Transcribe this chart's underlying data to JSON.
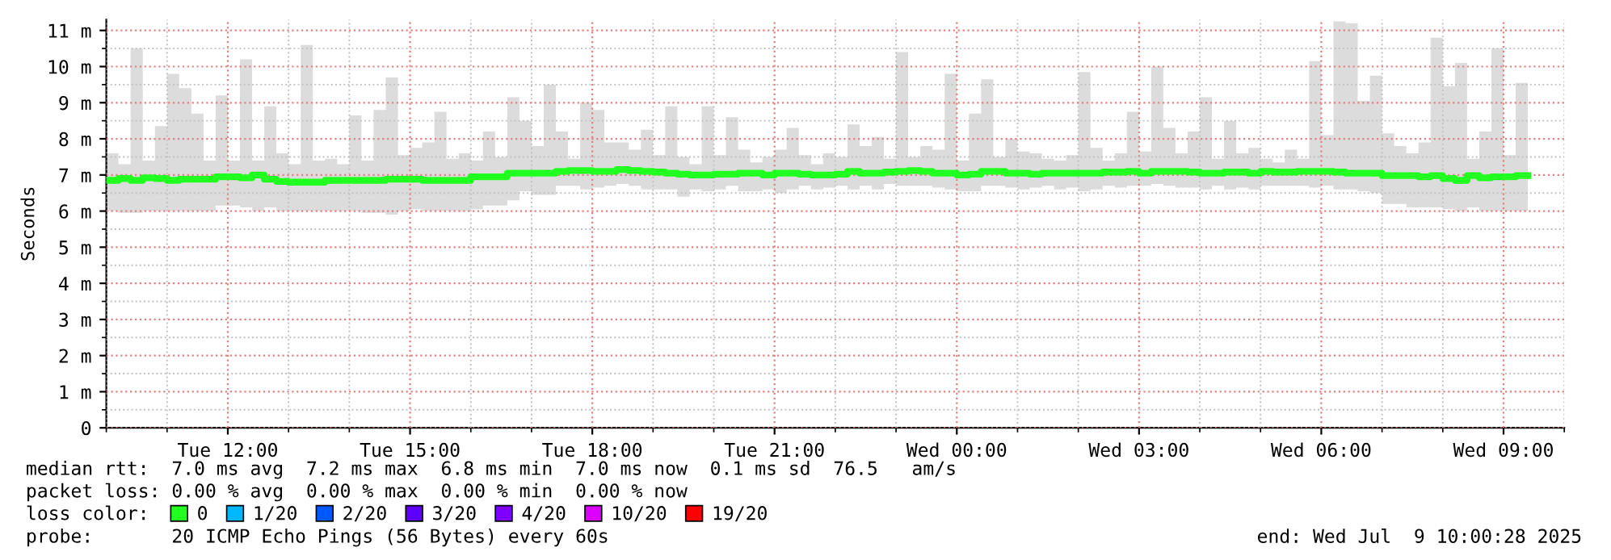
{
  "chart_data": {
    "type": "step",
    "ylabel": "Seconds",
    "xlim": [
      "2025-07-08T10:00",
      "2025-07-09T10:00"
    ],
    "xticks": [
      {
        "value": "2025-07-08T12:00",
        "label": "Tue 12:00"
      },
      {
        "value": "2025-07-08T15:00",
        "label": "Tue 15:00"
      },
      {
        "value": "2025-07-08T18:00",
        "label": "Tue 18:00"
      },
      {
        "value": "2025-07-08T21:00",
        "label": "Tue 21:00"
      },
      {
        "value": "2025-07-09T00:00",
        "label": "Wed 00:00"
      },
      {
        "value": "2025-07-09T03:00",
        "label": "Wed 03:00"
      },
      {
        "value": "2025-07-09T06:00",
        "label": "Wed 06:00"
      },
      {
        "value": "2025-07-09T09:00",
        "label": "Wed 09:00"
      }
    ],
    "ylim": [
      0,
      11.3
    ],
    "yticks": [
      {
        "value": 0,
        "label": "0"
      },
      {
        "value": 1,
        "label": "1 m"
      },
      {
        "value": 2,
        "label": "2 m"
      },
      {
        "value": 3,
        "label": "3 m"
      },
      {
        "value": 4,
        "label": "4 m"
      },
      {
        "value": 5,
        "label": "5 m"
      },
      {
        "value": 6,
        "label": "6 m"
      },
      {
        "value": 7,
        "label": "7 m"
      },
      {
        "value": 8,
        "label": "8 m"
      },
      {
        "value": 9,
        "label": "9 m"
      },
      {
        "value": 10,
        "label": "10 m"
      },
      {
        "value": 11,
        "label": "11 m"
      }
    ],
    "grid": true,
    "legend": "bottom left",
    "legend_title": "loss color:",
    "x": [
      "2025-07-08T10:00",
      "2025-07-08T10:12",
      "2025-07-08T10:24",
      "2025-07-08T10:36",
      "2025-07-08T10:48",
      "2025-07-08T11:00",
      "2025-07-08T11:12",
      "2025-07-08T11:24",
      "2025-07-08T11:36",
      "2025-07-08T11:48",
      "2025-07-08T12:00",
      "2025-07-08T12:12",
      "2025-07-08T12:24",
      "2025-07-08T12:36",
      "2025-07-08T12:48",
      "2025-07-08T13:00",
      "2025-07-08T13:12",
      "2025-07-08T13:24",
      "2025-07-08T13:36",
      "2025-07-08T13:48",
      "2025-07-08T14:00",
      "2025-07-08T14:12",
      "2025-07-08T14:24",
      "2025-07-08T14:36",
      "2025-07-08T14:48",
      "2025-07-08T15:00",
      "2025-07-08T15:12",
      "2025-07-08T15:24",
      "2025-07-08T15:36",
      "2025-07-08T15:48",
      "2025-07-08T16:00",
      "2025-07-08T16:12",
      "2025-07-08T16:24",
      "2025-07-08T16:36",
      "2025-07-08T16:48",
      "2025-07-08T17:00",
      "2025-07-08T17:12",
      "2025-07-08T17:24",
      "2025-07-08T17:36",
      "2025-07-08T17:48",
      "2025-07-08T18:00",
      "2025-07-08T18:12",
      "2025-07-08T18:24",
      "2025-07-08T18:36",
      "2025-07-08T18:48",
      "2025-07-08T19:00",
      "2025-07-08T19:12",
      "2025-07-08T19:24",
      "2025-07-08T19:36",
      "2025-07-08T19:48",
      "2025-07-08T20:00",
      "2025-07-08T20:12",
      "2025-07-08T20:24",
      "2025-07-08T20:36",
      "2025-07-08T20:48",
      "2025-07-08T21:00",
      "2025-07-08T21:12",
      "2025-07-08T21:24",
      "2025-07-08T21:36",
      "2025-07-08T21:48",
      "2025-07-08T22:00",
      "2025-07-08T22:12",
      "2025-07-08T22:24",
      "2025-07-08T22:36",
      "2025-07-08T22:48",
      "2025-07-08T23:00",
      "2025-07-08T23:12",
      "2025-07-08T23:24",
      "2025-07-08T23:36",
      "2025-07-08T23:48",
      "2025-07-09T00:00",
      "2025-07-09T00:12",
      "2025-07-09T00:24",
      "2025-07-09T00:36",
      "2025-07-09T00:48",
      "2025-07-09T01:00",
      "2025-07-09T01:12",
      "2025-07-09T01:24",
      "2025-07-09T01:36",
      "2025-07-09T01:48",
      "2025-07-09T02:00",
      "2025-07-09T02:12",
      "2025-07-09T02:24",
      "2025-07-09T02:36",
      "2025-07-09T02:48",
      "2025-07-09T03:00",
      "2025-07-09T03:12",
      "2025-07-09T03:24",
      "2025-07-09T03:36",
      "2025-07-09T03:48",
      "2025-07-09T04:00",
      "2025-07-09T04:12",
      "2025-07-09T04:24",
      "2025-07-09T04:36",
      "2025-07-09T04:48",
      "2025-07-09T05:00",
      "2025-07-09T05:12",
      "2025-07-09T05:24",
      "2025-07-09T05:36",
      "2025-07-09T05:48",
      "2025-07-09T06:00",
      "2025-07-09T06:12",
      "2025-07-09T06:24",
      "2025-07-09T06:36",
      "2025-07-09T06:48",
      "2025-07-09T07:00",
      "2025-07-09T07:12",
      "2025-07-09T07:24",
      "2025-07-09T07:36",
      "2025-07-09T07:48",
      "2025-07-09T08:00",
      "2025-07-09T08:12",
      "2025-07-09T08:24",
      "2025-07-09T08:36",
      "2025-07-09T08:48",
      "2025-07-09T09:00",
      "2025-07-09T09:12",
      "2025-07-09T09:24"
    ],
    "series": [
      {
        "name": "0",
        "color": "#20ff20",
        "values": [
          6.85,
          6.9,
          6.85,
          6.92,
          6.9,
          6.85,
          6.88,
          6.88,
          6.88,
          6.95,
          6.95,
          6.92,
          7.0,
          6.88,
          6.82,
          6.8,
          6.8,
          6.8,
          6.85,
          6.85,
          6.85,
          6.85,
          6.85,
          6.88,
          6.88,
          6.88,
          6.85,
          6.85,
          6.85,
          6.85,
          6.95,
          6.95,
          6.95,
          7.05,
          7.05,
          7.05,
          7.05,
          7.1,
          7.12,
          7.12,
          7.1,
          7.1,
          7.15,
          7.12,
          7.1,
          7.08,
          7.05,
          7.02,
          7.0,
          7.0,
          7.02,
          7.02,
          7.05,
          7.05,
          7.0,
          7.05,
          7.05,
          7.02,
          7.0,
          7.0,
          7.02,
          7.1,
          7.05,
          7.05,
          7.08,
          7.1,
          7.12,
          7.1,
          7.05,
          7.05,
          7.0,
          7.02,
          7.1,
          7.1,
          7.05,
          7.05,
          7.02,
          7.05,
          7.05,
          7.05,
          7.05,
          7.05,
          7.08,
          7.08,
          7.1,
          7.05,
          7.1,
          7.1,
          7.1,
          7.08,
          7.05,
          7.05,
          7.08,
          7.08,
          7.05,
          7.1,
          7.08,
          7.08,
          7.1,
          7.1,
          7.1,
          7.08,
          7.05,
          7.05,
          7.05,
          6.98,
          6.98,
          6.98,
          6.95,
          6.98,
          6.9,
          6.85,
          6.98,
          6.92,
          6.95,
          6.95,
          6.98,
          6.98
        ],
        "lower": [
          6.0,
          5.95,
          5.95,
          6.0,
          6.0,
          6.0,
          6.0,
          6.0,
          6.0,
          6.15,
          6.15,
          6.1,
          6.0,
          6.1,
          6.0,
          6.0,
          6.0,
          6.0,
          6.0,
          6.0,
          6.0,
          5.95,
          5.95,
          5.9,
          6.0,
          6.05,
          6.0,
          6.0,
          6.0,
          6.0,
          6.05,
          6.15,
          6.15,
          6.3,
          6.55,
          6.45,
          6.45,
          6.7,
          6.7,
          6.6,
          6.65,
          6.7,
          6.75,
          6.7,
          6.6,
          6.6,
          6.6,
          6.4,
          6.6,
          6.55,
          6.6,
          6.7,
          6.55,
          6.55,
          6.6,
          6.5,
          6.6,
          6.7,
          6.6,
          6.65,
          6.7,
          6.6,
          6.7,
          6.6,
          6.75,
          6.7,
          6.7,
          6.7,
          6.65,
          6.6,
          6.55,
          6.55,
          6.7,
          6.7,
          6.65,
          6.6,
          6.65,
          6.7,
          6.6,
          6.65,
          6.55,
          6.6,
          6.7,
          6.65,
          6.7,
          6.7,
          6.75,
          6.7,
          6.65,
          6.65,
          6.6,
          6.7,
          6.6,
          6.65,
          6.6,
          6.7,
          6.7,
          6.7,
          6.7,
          6.65,
          6.7,
          6.6,
          6.6,
          6.55,
          6.5,
          6.2,
          6.2,
          6.1,
          6.1,
          6.1,
          6.05,
          6.0,
          6.1,
          6.0,
          6.0,
          6.0,
          6.0,
          6.0
        ],
        "upper": [
          7.6,
          7.3,
          10.5,
          7.4,
          8.35,
          9.8,
          9.4,
          8.7,
          7.4,
          9.2,
          7.4,
          10.2,
          7.4,
          8.9,
          7.6,
          7.3,
          10.6,
          7.4,
          7.45,
          7.3,
          8.65,
          7.4,
          8.8,
          9.7,
          7.55,
          7.75,
          7.9,
          8.75,
          7.45,
          7.6,
          7.4,
          8.2,
          7.5,
          9.15,
          8.5,
          7.8,
          9.5,
          8.2,
          7.45,
          9.0,
          8.8,
          7.9,
          7.9,
          7.7,
          8.25,
          7.55,
          8.9,
          7.5,
          7.3,
          8.9,
          7.55,
          8.6,
          7.7,
          7.35,
          7.5,
          7.7,
          8.3,
          7.55,
          7.3,
          7.6,
          7.5,
          8.4,
          7.8,
          8.05,
          7.45,
          10.4,
          7.5,
          7.8,
          7.7,
          9.8,
          7.4,
          8.7,
          9.65,
          7.5,
          8.0,
          7.65,
          7.6,
          7.45,
          7.4,
          7.55,
          9.85,
          7.75,
          7.4,
          7.6,
          8.75,
          7.65,
          10.0,
          8.3,
          7.6,
          8.2,
          9.15,
          7.45,
          8.5,
          7.6,
          7.75,
          7.45,
          7.35,
          7.7,
          7.45,
          10.15,
          8.1,
          11.25,
          11.2,
          9.05,
          9.75,
          8.15,
          7.8,
          7.6,
          7.9,
          10.8,
          9.45,
          10.1,
          7.45,
          8.2,
          10.5,
          7.55,
          9.55,
          10.0
        ]
      },
      {
        "name": "1/20",
        "color": "#00b8ff",
        "values": [
          null,
          null,
          null,
          null,
          null,
          null,
          null,
          null,
          null,
          null,
          null,
          null,
          null,
          null,
          null,
          null,
          null,
          null,
          null,
          null,
          null,
          null,
          null,
          null,
          null,
          null,
          null,
          null,
          null,
          null,
          null,
          null,
          null,
          null,
          null,
          null,
          null,
          null,
          null,
          null,
          null,
          null,
          null,
          null,
          null,
          null,
          null,
          null,
          null,
          null,
          null,
          null,
          null,
          null,
          null,
          null,
          null,
          null,
          null,
          null,
          null,
          null,
          null,
          null,
          null,
          null,
          null,
          null,
          null,
          null,
          null,
          null,
          null,
          null,
          null,
          null,
          null,
          null,
          null,
          null,
          null,
          null,
          null,
          null,
          null,
          null,
          null,
          null,
          null,
          null,
          null,
          null,
          null,
          null,
          null,
          null,
          null,
          null,
          null,
          null,
          null,
          null,
          null,
          null,
          null,
          null,
          null,
          null,
          null,
          null,
          null,
          null,
          null,
          null,
          null,
          null,
          null,
          null
        ]
      },
      {
        "name": "2/20",
        "color": "#0059ff",
        "values": [
          null,
          null,
          null,
          null,
          null,
          null,
          null,
          null,
          null,
          null,
          null,
          null,
          null,
          null,
          null,
          null,
          null,
          null,
          null,
          null,
          null,
          null,
          null,
          null,
          null,
          null,
          null,
          null,
          null,
          null,
          null,
          null,
          null,
          null,
          null,
          null,
          null,
          null,
          null,
          null,
          null,
          null,
          null,
          null,
          null,
          null,
          null,
          null,
          null,
          null,
          null,
          null,
          null,
          null,
          null,
          null,
          null,
          null,
          null,
          null,
          null,
          null,
          null,
          null,
          null,
          null,
          null,
          null,
          null,
          null,
          null,
          null,
          null,
          null,
          null,
          null,
          null,
          null,
          null,
          null,
          null,
          null,
          null,
          null,
          null,
          null,
          null,
          null,
          null,
          null,
          null,
          null,
          null,
          null,
          null,
          null,
          null,
          null,
          null,
          null,
          null,
          null,
          null,
          null,
          null,
          null,
          null,
          null,
          null,
          null,
          null,
          null,
          null,
          null,
          null,
          null,
          null,
          null
        ]
      },
      {
        "name": "3/20",
        "color": "#5e00ff",
        "values": [
          null,
          null,
          null,
          null,
          null,
          null,
          null,
          null,
          null,
          null,
          null,
          null,
          null,
          null,
          null,
          null,
          null,
          null,
          null,
          null,
          null,
          null,
          null,
          null,
          null,
          null,
          null,
          null,
          null,
          null,
          null,
          null,
          null,
          null,
          null,
          null,
          null,
          null,
          null,
          null,
          null,
          null,
          null,
          null,
          null,
          null,
          null,
          null,
          null,
          null,
          null,
          null,
          null,
          null,
          null,
          null,
          null,
          null,
          null,
          null,
          null,
          null,
          null,
          null,
          null,
          null,
          null,
          null,
          null,
          null,
          null,
          null,
          null,
          null,
          null,
          null,
          null,
          null,
          null,
          null,
          null,
          null,
          null,
          null,
          null,
          null,
          null,
          null,
          null,
          null,
          null,
          null,
          null,
          null,
          null,
          null,
          null,
          null,
          null,
          null,
          null,
          null,
          null,
          null,
          null,
          null,
          null,
          null,
          null,
          null,
          null,
          null,
          null,
          null,
          null,
          null,
          null,
          null
        ]
      },
      {
        "name": "4/20",
        "color": "#7e00ff",
        "values": [
          null,
          null,
          null,
          null,
          null,
          null,
          null,
          null,
          null,
          null,
          null,
          null,
          null,
          null,
          null,
          null,
          null,
          null,
          null,
          null,
          null,
          null,
          null,
          null,
          null,
          null,
          null,
          null,
          null,
          null,
          null,
          null,
          null,
          null,
          null,
          null,
          null,
          null,
          null,
          null,
          null,
          null,
          null,
          null,
          null,
          null,
          null,
          null,
          null,
          null,
          null,
          null,
          null,
          null,
          null,
          null,
          null,
          null,
          null,
          null,
          null,
          null,
          null,
          null,
          null,
          null,
          null,
          null,
          null,
          null,
          null,
          null,
          null,
          null,
          null,
          null,
          null,
          null,
          null,
          null,
          null,
          null,
          null,
          null,
          null,
          null,
          null,
          null,
          null,
          null,
          null,
          null,
          null,
          null,
          null,
          null,
          null,
          null,
          null,
          null,
          null,
          null,
          null,
          null,
          null,
          null,
          null,
          null,
          null,
          null,
          null,
          null,
          null,
          null,
          null,
          null,
          null,
          null
        ]
      },
      {
        "name": "10/20",
        "color": "#dd00ff",
        "values": [
          null,
          null,
          null,
          null,
          null,
          null,
          null,
          null,
          null,
          null,
          null,
          null,
          null,
          null,
          null,
          null,
          null,
          null,
          null,
          null,
          null,
          null,
          null,
          null,
          null,
          null,
          null,
          null,
          null,
          null,
          null,
          null,
          null,
          null,
          null,
          null,
          null,
          null,
          null,
          null,
          null,
          null,
          null,
          null,
          null,
          null,
          null,
          null,
          null,
          null,
          null,
          null,
          null,
          null,
          null,
          null,
          null,
          null,
          null,
          null,
          null,
          null,
          null,
          null,
          null,
          null,
          null,
          null,
          null,
          null,
          null,
          null,
          null,
          null,
          null,
          null,
          null,
          null,
          null,
          null,
          null,
          null,
          null,
          null,
          null,
          null,
          null,
          null,
          null,
          null,
          null,
          null,
          null,
          null,
          null,
          null,
          null,
          null,
          null,
          null,
          null,
          null,
          null,
          null,
          null,
          null,
          null,
          null,
          null,
          null,
          null,
          null,
          null,
          null,
          null,
          null,
          null,
          null
        ]
      },
      {
        "name": "19/20",
        "color": "#ff0000",
        "values": [
          null,
          null,
          null,
          null,
          null,
          null,
          null,
          null,
          null,
          null,
          null,
          null,
          null,
          null,
          null,
          null,
          null,
          null,
          null,
          null,
          null,
          null,
          null,
          null,
          null,
          null,
          null,
          null,
          null,
          null,
          null,
          null,
          null,
          null,
          null,
          null,
          null,
          null,
          null,
          null,
          null,
          null,
          null,
          null,
          null,
          null,
          null,
          null,
          null,
          null,
          null,
          null,
          null,
          null,
          null,
          null,
          null,
          null,
          null,
          null,
          null,
          null,
          null,
          null,
          null,
          null,
          null,
          null,
          null,
          null,
          null,
          null,
          null,
          null,
          null,
          null,
          null,
          null,
          null,
          null,
          null,
          null,
          null,
          null,
          null,
          null,
          null,
          null,
          null,
          null,
          null,
          null,
          null,
          null,
          null,
          null,
          null,
          null,
          null,
          null,
          null,
          null,
          null,
          null,
          null,
          null,
          null,
          null,
          null,
          null,
          null,
          null,
          null,
          null,
          null,
          null,
          null,
          null
        ]
      }
    ],
    "annotations": [
      "median rtt:  7.0 ms avg  7.2 ms max  6.8 ms min  7.0 ms now  0.1 ms sd  76.5   am/s",
      "packet loss: 0.00 % avg  0.00 % max  0.00 % min  0.00 % now",
      "probe:       20 ICMP Echo Pings (56 Bytes) every 60s",
      "end: Wed Jul  9 10:00:28 2025"
    ]
  }
}
